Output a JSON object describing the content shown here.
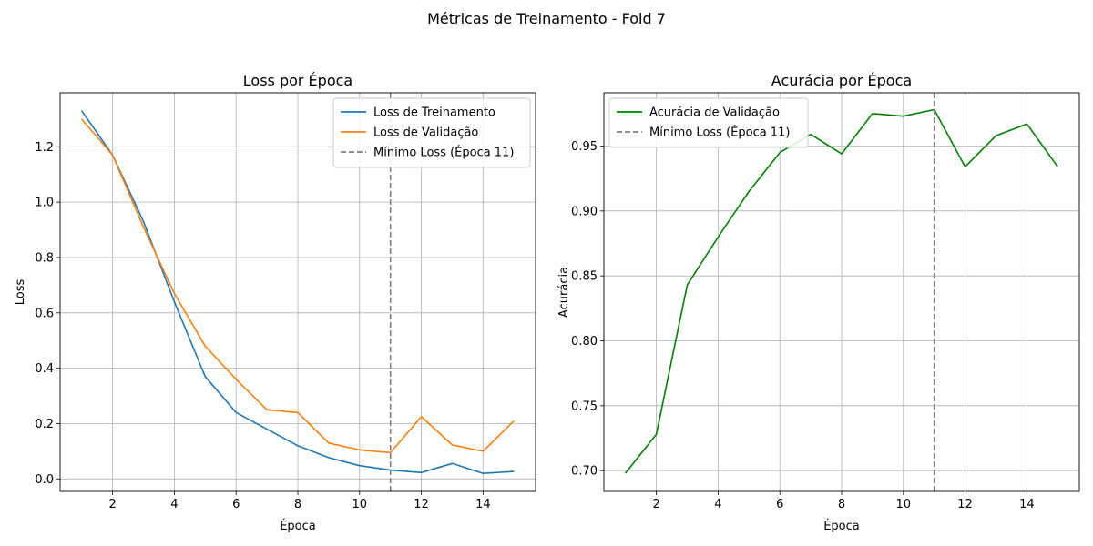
{
  "figure": {
    "suptitle": "Métricas de Treinamento - Fold 7"
  },
  "chart_data": [
    {
      "type": "line",
      "title": "Loss por Época",
      "xlabel": "Época",
      "ylabel": "Loss",
      "x": [
        1,
        2,
        3,
        4,
        5,
        6,
        7,
        8,
        9,
        10,
        11,
        12,
        13,
        14,
        15
      ],
      "xlim": [
        0.3,
        15.7
      ],
      "ylim": [
        -0.045,
        1.395
      ],
      "xticks": [
        2,
        4,
        6,
        8,
        10,
        12,
        14
      ],
      "yticks": [
        0.0,
        0.2,
        0.4,
        0.6,
        0.8,
        1.0,
        1.2
      ],
      "ytick_labels": [
        "0.0",
        "0.2",
        "0.4",
        "0.6",
        "0.8",
        "1.0",
        "1.2"
      ],
      "grid": true,
      "legend_position": "upper right",
      "series": [
        {
          "name": "Loss de Treinamento",
          "color": "#1f77b4",
          "values": [
            1.33,
            1.17,
            0.93,
            0.64,
            0.37,
            0.24,
            0.18,
            0.12,
            0.077,
            0.048,
            0.032,
            0.023,
            0.056,
            0.02,
            0.027
          ]
        },
        {
          "name": "Loss de Validação",
          "color": "#ff7f0e",
          "values": [
            1.3,
            1.17,
            0.91,
            0.67,
            0.48,
            0.36,
            0.25,
            0.24,
            0.13,
            0.105,
            0.095,
            0.225,
            0.123,
            0.1,
            0.21
          ]
        }
      ],
      "vline": {
        "x": 11,
        "name": "Mínimo Loss (Época 11)",
        "color": "#7f7f7f"
      }
    },
    {
      "type": "line",
      "title": "Acurácia por Época",
      "xlabel": "Época",
      "ylabel": "Acurácia",
      "x": [
        1,
        2,
        3,
        4,
        5,
        6,
        7,
        8,
        9,
        10,
        11,
        12,
        13,
        14,
        15
      ],
      "xlim": [
        0.3,
        15.7
      ],
      "ylim": [
        0.684,
        0.991
      ],
      "xticks": [
        2,
        4,
        6,
        8,
        10,
        12,
        14
      ],
      "yticks": [
        0.7,
        0.75,
        0.8,
        0.85,
        0.9,
        0.95
      ],
      "ytick_labels": [
        "0.70",
        "0.75",
        "0.80",
        "0.85",
        "0.90",
        "0.95"
      ],
      "grid": true,
      "legend_position": "upper left",
      "series": [
        {
          "name": "Acurácia de Validação",
          "color": "#008000",
          "values": [
            0.698,
            0.728,
            0.843,
            0.88,
            0.915,
            0.945,
            0.959,
            0.944,
            0.975,
            0.973,
            0.978,
            0.934,
            0.958,
            0.967,
            0.934
          ]
        }
      ],
      "vline": {
        "x": 11,
        "name": "Mínimo Loss (Época 11)",
        "color": "#7f7f7f"
      }
    }
  ]
}
